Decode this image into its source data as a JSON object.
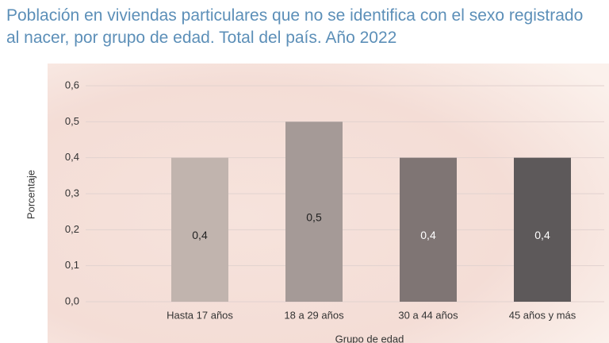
{
  "chart_data": {
    "type": "bar",
    "title": "Población en viviendas particulares que no se identifica con el sexo registrado al nacer, por grupo de edad. Total del país. Año 2022",
    "categories": [
      "Hasta 17 años",
      "18 a 29 años",
      "30 a 44 años",
      "45 años y más"
    ],
    "values": [
      0.4,
      0.5,
      0.4,
      0.4
    ],
    "value_labels": [
      "0,4",
      "0,5",
      "0,4",
      "0,4"
    ],
    "colors": [
      "#c1b4ae",
      "#a59a97",
      "#7f7574",
      "#5d595a"
    ],
    "label_colors": [
      "#222222",
      "#222222",
      "#ffffff",
      "#ffffff"
    ],
    "ylim": [
      0,
      0.6
    ],
    "yticks": [
      {
        "value": 0,
        "label": "0,0"
      },
      {
        "value": 0.1,
        "label": "0,1"
      },
      {
        "value": 0.2,
        "label": "0,2"
      },
      {
        "value": 0.3,
        "label": "0,3"
      },
      {
        "value": 0.4,
        "label": "0,4"
      },
      {
        "value": 0.5,
        "label": "0,5"
      },
      {
        "value": 0.6,
        "label": "0,6"
      }
    ],
    "y_label": "Porcentaje",
    "x_label": "Grupo de edad",
    "grid": true
  }
}
